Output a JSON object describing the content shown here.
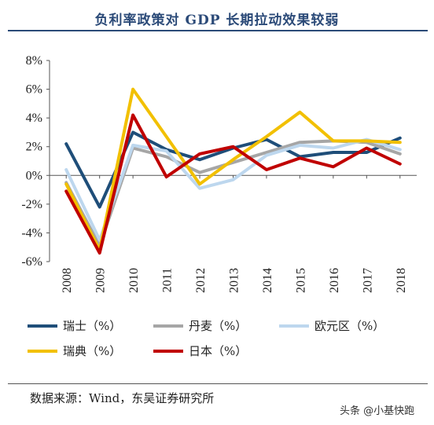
{
  "header": {
    "title": "负利率政策对 GDP 长期拉动效果较弱"
  },
  "footer": {
    "source": "数据来源：Wind，东吴证券研究所",
    "watermark": "头条 @小基快跑"
  },
  "chart_data": {
    "type": "line",
    "title": "负利率政策对 GDP 长期拉动效果较弱",
    "x": [
      "2008",
      "2009",
      "2010",
      "2011",
      "2012",
      "2013",
      "2014",
      "2015",
      "2016",
      "2017",
      "2018"
    ],
    "ylim": [
      -6,
      8
    ],
    "yticks": [
      -6,
      -4,
      -2,
      0,
      2,
      4,
      6,
      8
    ],
    "ytick_labels": [
      "-6%",
      "-4%",
      "-2%",
      "0%",
      "2%",
      "4%",
      "6%",
      "8%"
    ],
    "grid": false,
    "legend_position": "bottom",
    "series": [
      {
        "name": "瑞士（%）",
        "color": "#1f4e79",
        "values": [
          2.2,
          -2.2,
          3.0,
          1.8,
          1.1,
          1.9,
          2.5,
          1.3,
          1.6,
          1.6,
          2.6
        ]
      },
      {
        "name": "丹麦（%）",
        "color": "#a6a6a6",
        "values": [
          -0.5,
          -4.9,
          1.9,
          1.3,
          0.2,
          0.9,
          1.6,
          2.3,
          2.4,
          2.3,
          1.5
        ]
      },
      {
        "name": "欧元区（%）",
        "color": "#bdd7ee",
        "values": [
          0.4,
          -4.5,
          2.1,
          1.7,
          -0.9,
          -0.3,
          1.4,
          2.1,
          1.9,
          2.5,
          1.8
        ]
      },
      {
        "name": "瑞典（%）",
        "color": "#f2c000",
        "values": [
          -0.6,
          -5.2,
          6.0,
          2.7,
          -0.6,
          1.1,
          2.7,
          4.4,
          2.4,
          2.4,
          2.3
        ]
      },
      {
        "name": "日本（%）",
        "color": "#c00000",
        "values": [
          -1.1,
          -5.4,
          4.2,
          -0.1,
          1.5,
          2.0,
          0.4,
          1.2,
          0.6,
          1.9,
          0.8
        ]
      }
    ]
  }
}
